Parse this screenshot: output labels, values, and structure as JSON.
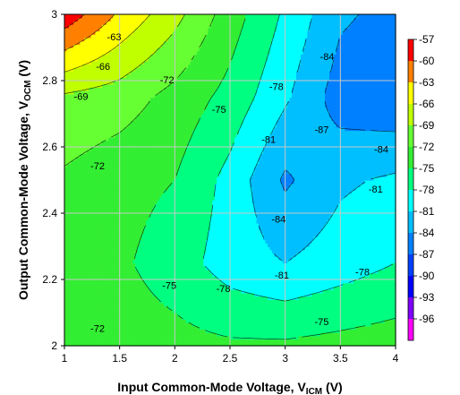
{
  "chart_data": {
    "type": "heatmap",
    "subtype": "filled-contour",
    "title": "",
    "xlabel": "Input Common-Mode Voltage, V",
    "xlabel_sub": "ICM",
    "xlabel_unit": " (V)",
    "ylabel": "Output Common-Mode Voltage, V",
    "ylabel_sub": "OCM",
    "ylabel_unit": " (V)",
    "xlim": [
      1,
      4
    ],
    "ylim": [
      2,
      3
    ],
    "xticks": [
      "1",
      "1.5",
      "2",
      "2.5",
      "3",
      "3.5",
      "4"
    ],
    "yticks": [
      "2",
      "2.2",
      "2.4",
      "2.6",
      "2.8",
      "3"
    ],
    "grid": true,
    "x": [
      1.0,
      1.5,
      2.0,
      2.5,
      3.0,
      3.5,
      4.0
    ],
    "y": [
      2.0,
      2.25,
      2.5,
      2.75,
      3.0
    ],
    "z": [
      [
        -72.5,
        -73.5,
        -74.0,
        -74.5,
        -74.5,
        -74.0,
        -73.5
      ],
      [
        -73.0,
        -74.5,
        -76.5,
        -79.5,
        -81.0,
        -79.5,
        -78.0
      ],
      [
        -72.5,
        -74.0,
        -75.0,
        -79.0,
        -84.5,
        -81.5,
        -80.5
      ],
      [
        -69.5,
        -70.5,
        -73.0,
        -76.0,
        -80.5,
        -85.5,
        -86.5
      ],
      [
        -58.0,
        -63.5,
        -68.0,
        -73.5,
        -78.5,
        -83.5,
        -85.0
      ]
    ],
    "colorbar": {
      "levels": [
        "-57",
        "-60",
        "-63",
        "-66",
        "-69",
        "-72",
        "-75",
        "-78",
        "-81",
        "-84",
        "-87",
        "-90",
        "-93",
        "-96"
      ],
      "colors": [
        "#ff0000",
        "#ff8000",
        "#ffff00",
        "#c0ff00",
        "#66ff33",
        "#33ee33",
        "#00ff80",
        "#00ffff",
        "#00bfff",
        "#0080ff",
        "#0040ff",
        "#0000ff",
        "#8000ff",
        "#ff00ff"
      ]
    },
    "contour_labels": [
      {
        "text": "-63",
        "x": 1.45,
        "y": 2.93
      },
      {
        "text": "-66",
        "x": 1.35,
        "y": 2.84
      },
      {
        "text": "-69",
        "x": 1.15,
        "y": 2.75
      },
      {
        "text": "-72",
        "x": 1.93,
        "y": 2.8
      },
      {
        "text": "-72",
        "x": 1.3,
        "y": 2.54
      },
      {
        "text": "-75",
        "x": 2.4,
        "y": 2.71
      },
      {
        "text": "-78",
        "x": 2.92,
        "y": 2.78
      },
      {
        "text": "-84",
        "x": 3.38,
        "y": 2.87
      },
      {
        "text": "-81",
        "x": 2.85,
        "y": 2.62
      },
      {
        "text": "-87",
        "x": 3.33,
        "y": 2.65
      },
      {
        "text": "-84",
        "x": 3.87,
        "y": 2.59
      },
      {
        "text": "-81",
        "x": 3.82,
        "y": 2.47
      },
      {
        "text": "-84",
        "x": 2.94,
        "y": 2.38
      },
      {
        "text": "-81",
        "x": 2.97,
        "y": 2.21
      },
      {
        "text": "-78",
        "x": 3.7,
        "y": 2.22
      },
      {
        "text": "-78",
        "x": 2.44,
        "y": 2.17
      },
      {
        "text": "-75",
        "x": 1.95,
        "y": 2.18
      },
      {
        "text": "-75",
        "x": 3.33,
        "y": 2.07
      },
      {
        "text": "-72",
        "x": 1.3,
        "y": 2.05
      }
    ]
  }
}
